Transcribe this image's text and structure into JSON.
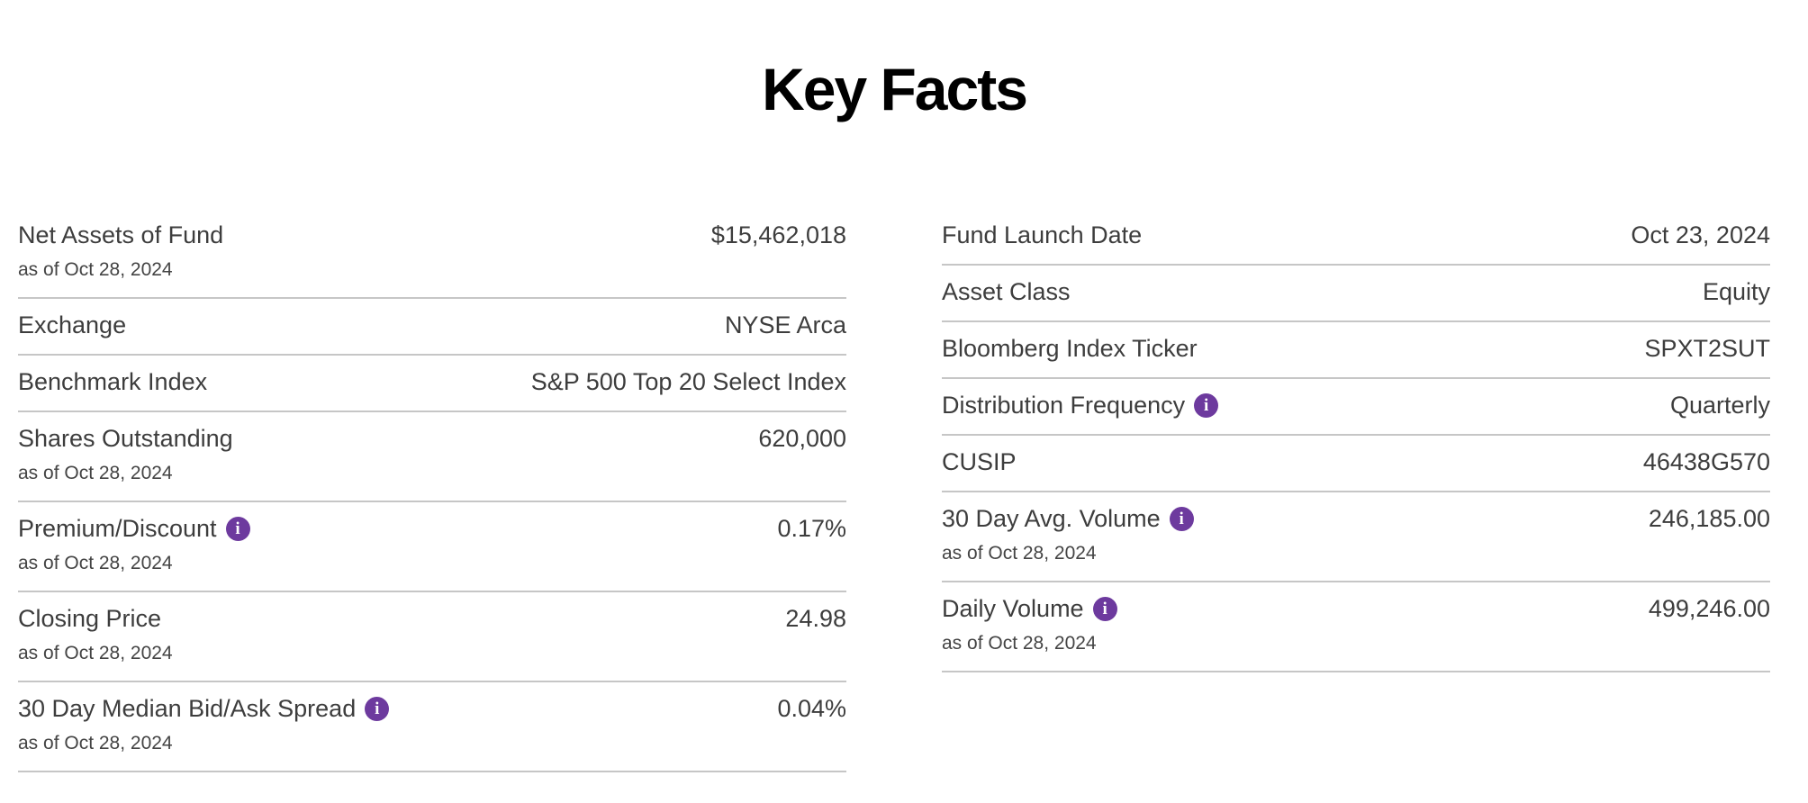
{
  "title": "Key Facts",
  "info_icon": {
    "glyph": "i",
    "background_color": "#6d3a9e",
    "foreground_color": "#ffffff"
  },
  "colors": {
    "title_text": "#000000",
    "label_text": "#3d3d3d",
    "divider": "#c6c6c6",
    "accent_purple": "#6d3a9e",
    "background": "#ffffff"
  },
  "columns": {
    "left": {
      "rows": [
        {
          "label": "Net Assets of Fund",
          "sublabel": "as of Oct 28, 2024",
          "value": "$15,462,018",
          "info": false
        },
        {
          "label": "Exchange",
          "sublabel": null,
          "value": "NYSE Arca",
          "info": false
        },
        {
          "label": "Benchmark Index",
          "sublabel": null,
          "value": "S&P 500 Top 20 Select Index",
          "info": false
        },
        {
          "label": "Shares Outstanding",
          "sublabel": "as of Oct 28, 2024",
          "value": "620,000",
          "info": false
        },
        {
          "label": "Premium/Discount",
          "sublabel": "as of Oct 28, 2024",
          "value": "0.17%",
          "info": true
        },
        {
          "label": "Closing Price",
          "sublabel": "as of Oct 28, 2024",
          "value": "24.98",
          "info": false
        },
        {
          "label": "30 Day Median Bid/Ask Spread",
          "sublabel": "as of Oct 28, 2024",
          "value": "0.04%",
          "info": true
        }
      ]
    },
    "right": {
      "rows": [
        {
          "label": "Fund Launch Date",
          "sublabel": null,
          "value": "Oct 23, 2024",
          "info": false
        },
        {
          "label": "Asset Class",
          "sublabel": null,
          "value": "Equity",
          "info": false
        },
        {
          "label": "Bloomberg Index Ticker",
          "sublabel": null,
          "value": "SPXT2SUT",
          "info": false
        },
        {
          "label": "Distribution Frequency",
          "sublabel": null,
          "value": "Quarterly",
          "info": true
        },
        {
          "label": "CUSIP",
          "sublabel": null,
          "value": "46438G570",
          "info": false
        },
        {
          "label": "30 Day Avg. Volume",
          "sublabel": "as of Oct 28, 2024",
          "value": "246,185.00",
          "info": true
        },
        {
          "label": "Daily Volume",
          "sublabel": "as of Oct 28, 2024",
          "value": "499,246.00",
          "info": true
        }
      ]
    }
  }
}
